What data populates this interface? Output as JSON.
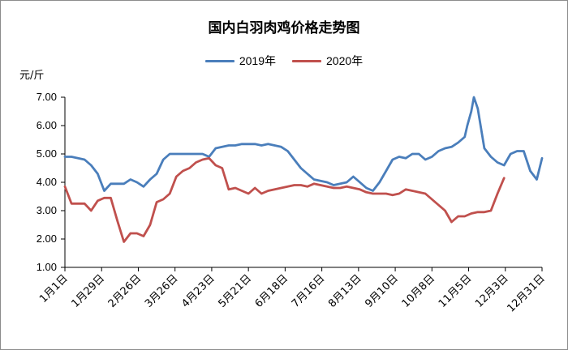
{
  "chart_data": {
    "type": "line",
    "title": "国内白羽肉鸡价格走势图",
    "ylabel": "元/斤",
    "ylim": [
      1.0,
      7.0
    ],
    "yticks": [
      "1.00",
      "2.00",
      "3.00",
      "4.00",
      "5.00",
      "6.00",
      "7.00"
    ],
    "categories": [
      "1月1日",
      "1月29日",
      "2月26日",
      "3月26日",
      "4月23日",
      "5月21日",
      "6月18日",
      "7月16日",
      "8月13日",
      "9月10日",
      "10月8日",
      "11月5日",
      "12月3日",
      "12月31日"
    ],
    "legend_position": "top-center",
    "grid": false,
    "series": [
      {
        "name": "2019年",
        "color": "#4a7ebb",
        "x": [
          1,
          6,
          11,
          16,
          21,
          26,
          31,
          36,
          41,
          46,
          51,
          56,
          61,
          66,
          71,
          76,
          81,
          86,
          91,
          96,
          101,
          106,
          111,
          116,
          121,
          126,
          131,
          136,
          141,
          146,
          151,
          156,
          161,
          166,
          171,
          176,
          181,
          186,
          191,
          196,
          201,
          206,
          211,
          216,
          221,
          226,
          231,
          236,
          241,
          246,
          251,
          256,
          261,
          266,
          271,
          276,
          281,
          286,
          291,
          296,
          301,
          306,
          308,
          311,
          313,
          316,
          321,
          326,
          331,
          336,
          341,
          346,
          351,
          356,
          361,
          365
        ],
        "y": [
          4.9,
          4.9,
          4.85,
          4.8,
          4.6,
          4.3,
          3.7,
          3.95,
          3.95,
          3.95,
          4.1,
          4.0,
          3.85,
          4.1,
          4.3,
          4.8,
          5.0,
          5.0,
          5.0,
          5.0,
          5.0,
          5.0,
          4.9,
          5.2,
          5.25,
          5.3,
          5.3,
          5.35,
          5.35,
          5.35,
          5.3,
          5.35,
          5.3,
          5.25,
          5.1,
          4.8,
          4.5,
          4.3,
          4.1,
          4.05,
          4.0,
          3.9,
          3.95,
          4.0,
          4.2,
          4.0,
          3.8,
          3.7,
          4.0,
          4.4,
          4.8,
          4.9,
          4.85,
          5.0,
          5.0,
          4.8,
          4.9,
          5.1,
          5.2,
          5.25,
          5.4,
          5.6,
          6.0,
          6.5,
          7.0,
          6.6,
          5.2,
          4.9,
          4.7,
          4.6,
          5.0,
          5.1,
          5.1,
          4.4,
          4.1,
          4.85
        ]
      },
      {
        "name": "2020年",
        "color": "#c0504d",
        "x": [
          1,
          6,
          11,
          16,
          21,
          26,
          31,
          36,
          41,
          46,
          51,
          56,
          61,
          66,
          71,
          76,
          81,
          86,
          91,
          96,
          101,
          106,
          111,
          116,
          121,
          126,
          131,
          136,
          141,
          146,
          151,
          156,
          161,
          166,
          171,
          176,
          181,
          186,
          191,
          196,
          201,
          206,
          211,
          216,
          221,
          226,
          231,
          236,
          241,
          246,
          251,
          256,
          261,
          266,
          271,
          276,
          281,
          286,
          291,
          296,
          301,
          306,
          311,
          316,
          321,
          326,
          331,
          336
        ],
        "y": [
          3.85,
          3.25,
          3.25,
          3.25,
          3.0,
          3.35,
          3.45,
          3.45,
          2.65,
          1.9,
          2.2,
          2.2,
          2.1,
          2.5,
          3.3,
          3.4,
          3.6,
          4.2,
          4.4,
          4.5,
          4.7,
          4.8,
          4.85,
          4.6,
          4.5,
          3.75,
          3.8,
          3.7,
          3.6,
          3.8,
          3.6,
          3.7,
          3.75,
          3.8,
          3.85,
          3.9,
          3.9,
          3.85,
          3.95,
          3.9,
          3.85,
          3.8,
          3.8,
          3.85,
          3.8,
          3.75,
          3.65,
          3.6,
          3.6,
          3.6,
          3.55,
          3.6,
          3.75,
          3.7,
          3.65,
          3.6,
          3.4,
          3.2,
          3.0,
          2.6,
          2.8,
          2.8,
          2.9,
          2.95,
          2.95,
          3.0,
          3.6,
          4.15
        ]
      }
    ]
  }
}
